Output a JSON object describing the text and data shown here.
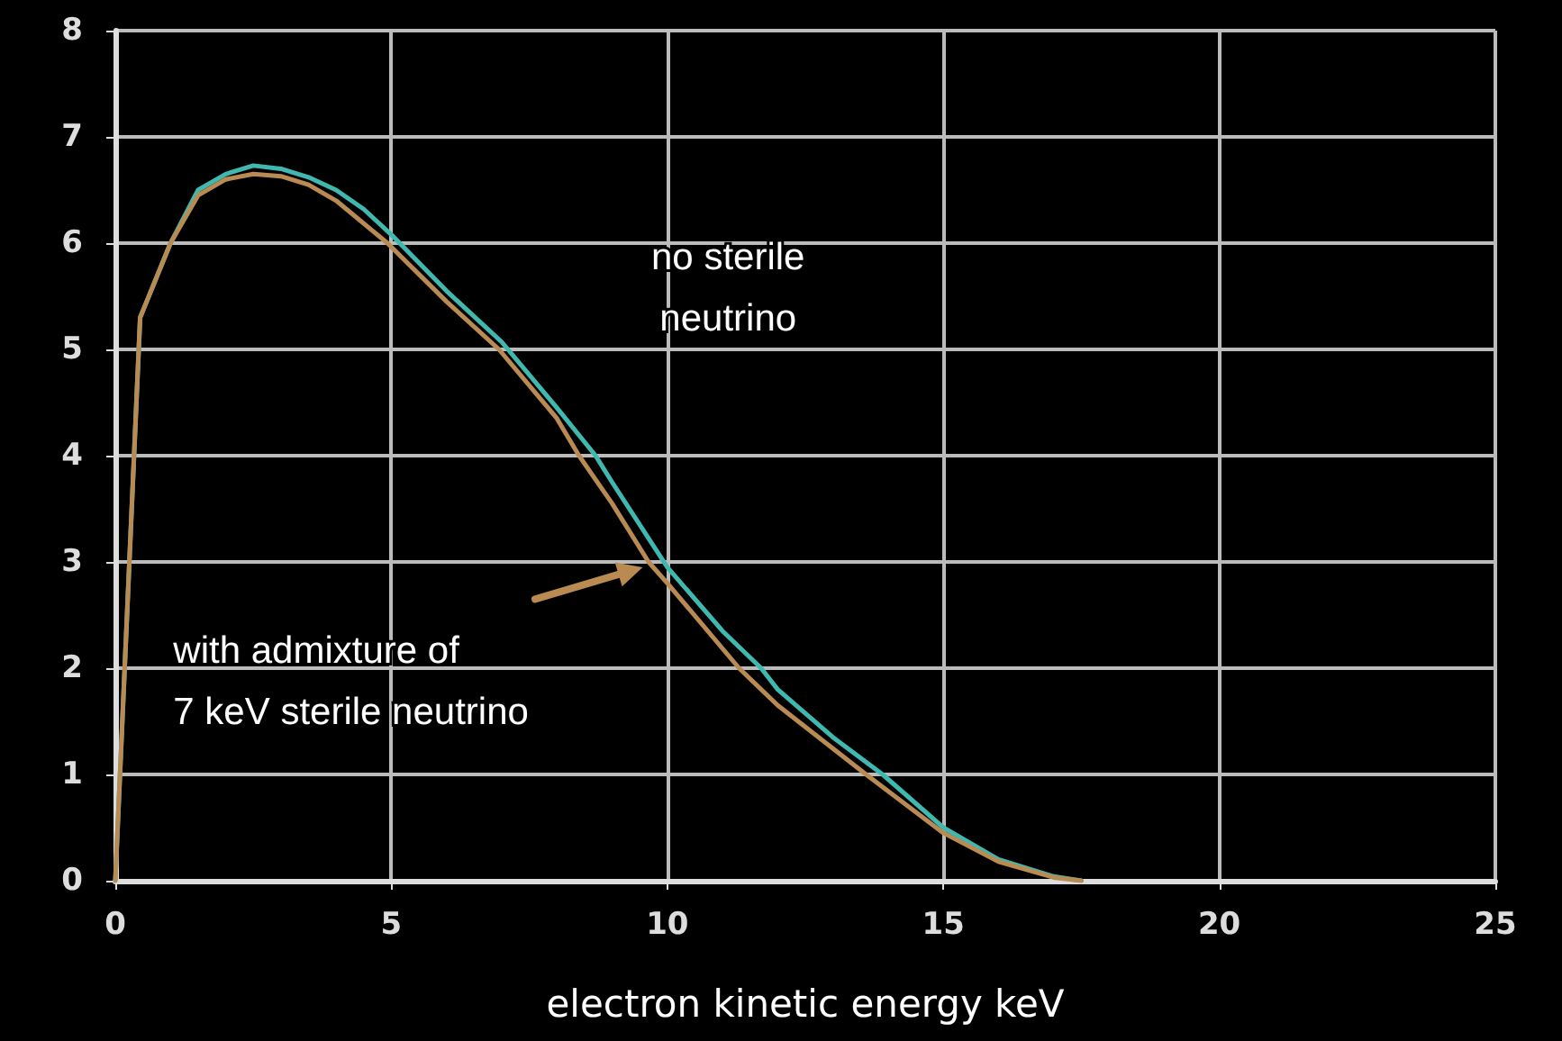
{
  "chart_data": {
    "type": "line",
    "xlabel": "electron kinetic energy keV",
    "xlim": [
      0,
      25
    ],
    "xticks": [
      0,
      5,
      10,
      15,
      20,
      25
    ],
    "ylim": [
      0,
      8
    ],
    "yticks": [
      0,
      1,
      2,
      3,
      4,
      5,
      6,
      7,
      8
    ],
    "grid": true,
    "marker": "none",
    "line_style": "solid",
    "annotations": [
      "no sterile\nneutrino",
      "with admixture of\n7 keV sterile neutrino"
    ],
    "series": [
      {
        "color": "#3fb8b0",
        "x": [
          0,
          0.45,
          1,
          1.5,
          2,
          2.5,
          3,
          3.5,
          4,
          4.5,
          5,
          6,
          7,
          8,
          8.7,
          9,
          10,
          11,
          11.7,
          12,
          13,
          13.9,
          15,
          16,
          17,
          17.5
        ],
        "values": [
          0,
          5.3,
          6.0,
          6.5,
          6.65,
          6.73,
          6.7,
          6.62,
          6.5,
          6.32,
          6.08,
          5.55,
          5.07,
          4.45,
          4.0,
          3.75,
          2.95,
          2.35,
          2.0,
          1.8,
          1.35,
          1.0,
          0.5,
          0.2,
          0.04,
          0
        ]
      },
      {
        "color": "#b98a52",
        "x": [
          0,
          0.45,
          1,
          1.5,
          2,
          2.5,
          3,
          3.5,
          4,
          4.93,
          6,
          6.95,
          8,
          8.4,
          9,
          9.66,
          10,
          11.3,
          12,
          13.6,
          15,
          16,
          17,
          17.5
        ],
        "values": [
          0,
          5.3,
          6.0,
          6.45,
          6.6,
          6.65,
          6.63,
          6.55,
          6.4,
          6.0,
          5.45,
          5.0,
          4.35,
          4.0,
          3.55,
          3.0,
          2.8,
          2.0,
          1.65,
          1.0,
          0.45,
          0.18,
          0.03,
          0
        ]
      }
    ]
  }
}
